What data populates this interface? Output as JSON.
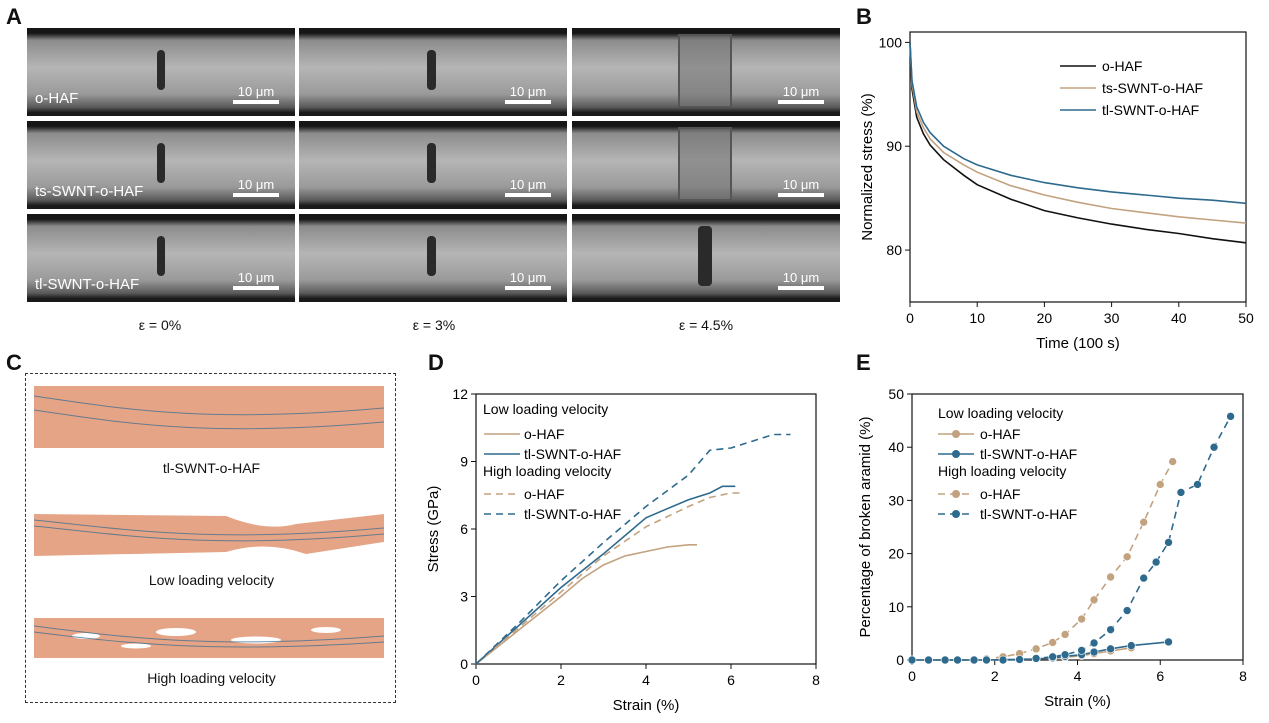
{
  "panels": {
    "a": "A",
    "b": "B",
    "c": "C",
    "d": "D",
    "e": "E"
  },
  "panel_a": {
    "rows": [
      "o-HAF",
      "ts-SWNT-o-HAF",
      "tl-SWNT-o-HAF"
    ],
    "columns": [
      "ε = 0%",
      "ε = 3%",
      "ε = 4.5%"
    ],
    "scale_bar": "10 μm"
  },
  "panel_c": {
    "captions": [
      "tl-SWNT-o-HAF",
      "Low loading velocity",
      "High loading velocity"
    ]
  },
  "chart_data": [
    {
      "panel": "B",
      "type": "line",
      "xlabel": "Time (100 s)",
      "ylabel": "Normalized stress (%)",
      "xlim": [
        0,
        50
      ],
      "ylim": [
        75,
        101
      ],
      "xticks": [
        0,
        10,
        20,
        30,
        40,
        50
      ],
      "yticks": [
        80,
        90,
        100
      ],
      "legend": "top-right",
      "series": [
        {
          "name": "o-HAF",
          "color": "#111111",
          "x": [
            0,
            0.3,
            1,
            2,
            3,
            5,
            8,
            10,
            15,
            20,
            25,
            30,
            35,
            40,
            45,
            50
          ],
          "y": [
            100,
            95.5,
            92.8,
            91.2,
            90.1,
            88.7,
            87.2,
            86.3,
            84.9,
            83.8,
            83.1,
            82.5,
            82.0,
            81.6,
            81.1,
            80.7
          ]
        },
        {
          "name": "ts-SWNT-o-HAF",
          "color": "#c2a27f",
          "x": [
            0,
            0.3,
            1,
            2,
            3,
            5,
            8,
            10,
            15,
            20,
            25,
            30,
            35,
            40,
            45,
            50
          ],
          "y": [
            100,
            96,
            93.3,
            91.8,
            90.7,
            89.4,
            88.2,
            87.5,
            86.2,
            85.3,
            84.6,
            84.0,
            83.6,
            83.2,
            82.9,
            82.6
          ]
        },
        {
          "name": "tl-SWNT-o-HAF",
          "color": "#2e6a8e",
          "x": [
            0,
            0.3,
            1,
            2,
            3,
            5,
            8,
            10,
            15,
            20,
            25,
            30,
            35,
            40,
            45,
            50
          ],
          "y": [
            100,
            96.3,
            93.8,
            92.3,
            91.3,
            90.0,
            88.8,
            88.2,
            87.2,
            86.5,
            86.0,
            85.6,
            85.3,
            85.0,
            84.8,
            84.5
          ]
        }
      ]
    },
    {
      "panel": "D",
      "type": "line",
      "xlabel": "Strain (%)",
      "ylabel": "Stress (GPa)",
      "xlim": [
        0,
        8
      ],
      "ylim": [
        0,
        12
      ],
      "xticks": [
        0,
        2,
        4,
        6,
        8
      ],
      "yticks": [
        0,
        3,
        6,
        9,
        12
      ],
      "legend_groups": [
        "Low loading velocity",
        "High loading velocity"
      ],
      "series": [
        {
          "name": "o-HAF",
          "group": "Low loading velocity",
          "style": "solid",
          "color": "#c2a27f",
          "x": [
            0,
            1,
            2,
            2.5,
            3,
            3.5,
            4,
            4.5,
            5,
            5.2
          ],
          "y": [
            0,
            1.5,
            3.0,
            3.8,
            4.4,
            4.8,
            5.0,
            5.2,
            5.3,
            5.3
          ]
        },
        {
          "name": "tl-SWNT-o-HAF",
          "group": "Low loading velocity",
          "style": "solid",
          "color": "#2e6a8e",
          "x": [
            0,
            1,
            2,
            3,
            4,
            4.5,
            5,
            5.5,
            5.8,
            6.1
          ],
          "y": [
            0,
            1.7,
            3.4,
            4.9,
            6.5,
            6.9,
            7.3,
            7.6,
            7.9,
            7.9
          ]
        },
        {
          "name": "o-HAF",
          "group": "High loading velocity",
          "style": "dashed",
          "color": "#c2a27f",
          "x": [
            0,
            1,
            2,
            3,
            4,
            5,
            5.5,
            6,
            6.3
          ],
          "y": [
            0,
            1.6,
            3.2,
            4.8,
            6.1,
            7.0,
            7.4,
            7.6,
            7.6
          ]
        },
        {
          "name": "tl-SWNT-o-HAF",
          "group": "High loading velocity",
          "style": "dashed",
          "color": "#2e6a8e",
          "x": [
            0,
            1,
            2,
            3,
            4,
            5,
            5.5,
            6,
            6.5,
            7,
            7.4
          ],
          "y": [
            0,
            1.8,
            3.7,
            5.4,
            7.0,
            8.4,
            9.5,
            9.6,
            9.9,
            10.2,
            10.2
          ]
        }
      ]
    },
    {
      "panel": "E",
      "type": "line",
      "xlabel": "Strain (%)",
      "ylabel": "Percentage of broken aramid (%)",
      "xlim": [
        0,
        8
      ],
      "ylim": [
        0,
        50
      ],
      "xticks": [
        0,
        2,
        4,
        6,
        8
      ],
      "yticks": [
        0,
        10,
        20,
        30,
        40,
        50
      ],
      "legend_groups": [
        "Low loading velocity",
        "High loading velocity"
      ],
      "series": [
        {
          "name": "o-HAF",
          "group": "Low loading velocity",
          "style": "solid",
          "color": "#c2a27f",
          "x": [
            0,
            0.4,
            0.8,
            1.1,
            1.5,
            1.8,
            2.2,
            2.6,
            3.0,
            3.4,
            3.7,
            4.1,
            4.4,
            4.8,
            5.3
          ],
          "y": [
            0,
            0,
            0,
            0,
            0,
            0,
            0,
            0.1,
            0.2,
            0.3,
            0.5,
            0.8,
            1.2,
            1.7,
            2.3
          ]
        },
        {
          "name": "tl-SWNT-o-HAF",
          "group": "Low loading velocity",
          "style": "solid",
          "color": "#2e6a8e",
          "x": [
            0,
            0.4,
            0.8,
            1.1,
            1.5,
            1.8,
            2.2,
            2.6,
            3.0,
            3.4,
            3.7,
            4.1,
            4.4,
            4.8,
            5.3,
            6.2
          ],
          "y": [
            0,
            0,
            0,
            0,
            0,
            0,
            0.1,
            0.1,
            0.2,
            0.4,
            0.7,
            1.0,
            1.5,
            2.1,
            2.7,
            3.4
          ]
        },
        {
          "name": "o-HAF",
          "group": "High loading velocity",
          "style": "dashed",
          "color": "#c2a27f",
          "x": [
            0,
            0.4,
            0.8,
            1.1,
            1.5,
            1.8,
            2.2,
            2.6,
            3.0,
            3.4,
            3.7,
            4.1,
            4.4,
            4.8,
            5.2,
            5.6,
            6.0,
            6.3
          ],
          "y": [
            0,
            0,
            0,
            0,
            0,
            0.2,
            0.6,
            1.2,
            2.1,
            3.3,
            4.8,
            7.7,
            11.3,
            15.6,
            19.4,
            25.9,
            33.0,
            37.3
          ]
        },
        {
          "name": "tl-SWNT-o-HAF",
          "group": "High loading velocity",
          "style": "dashed",
          "color": "#2e6a8e",
          "x": [
            0,
            0.4,
            0.8,
            1.1,
            1.5,
            1.8,
            2.2,
            2.6,
            3.0,
            3.4,
            3.7,
            4.1,
            4.4,
            4.8,
            5.2,
            5.6,
            5.9,
            6.2,
            6.5,
            6.9,
            7.3,
            7.7
          ],
          "y": [
            0,
            0,
            0,
            0,
            0,
            0,
            0,
            0.1,
            0.3,
            0.6,
            1.0,
            1.8,
            3.2,
            5.7,
            9.3,
            15.4,
            18.4,
            22.1,
            31.5,
            33.0,
            40.0,
            45.8
          ]
        }
      ]
    }
  ],
  "colors": {
    "ohaf": "#c2a27f",
    "tl": "#2e6a8e",
    "black": "#111111",
    "fiber": "#e6a487"
  }
}
